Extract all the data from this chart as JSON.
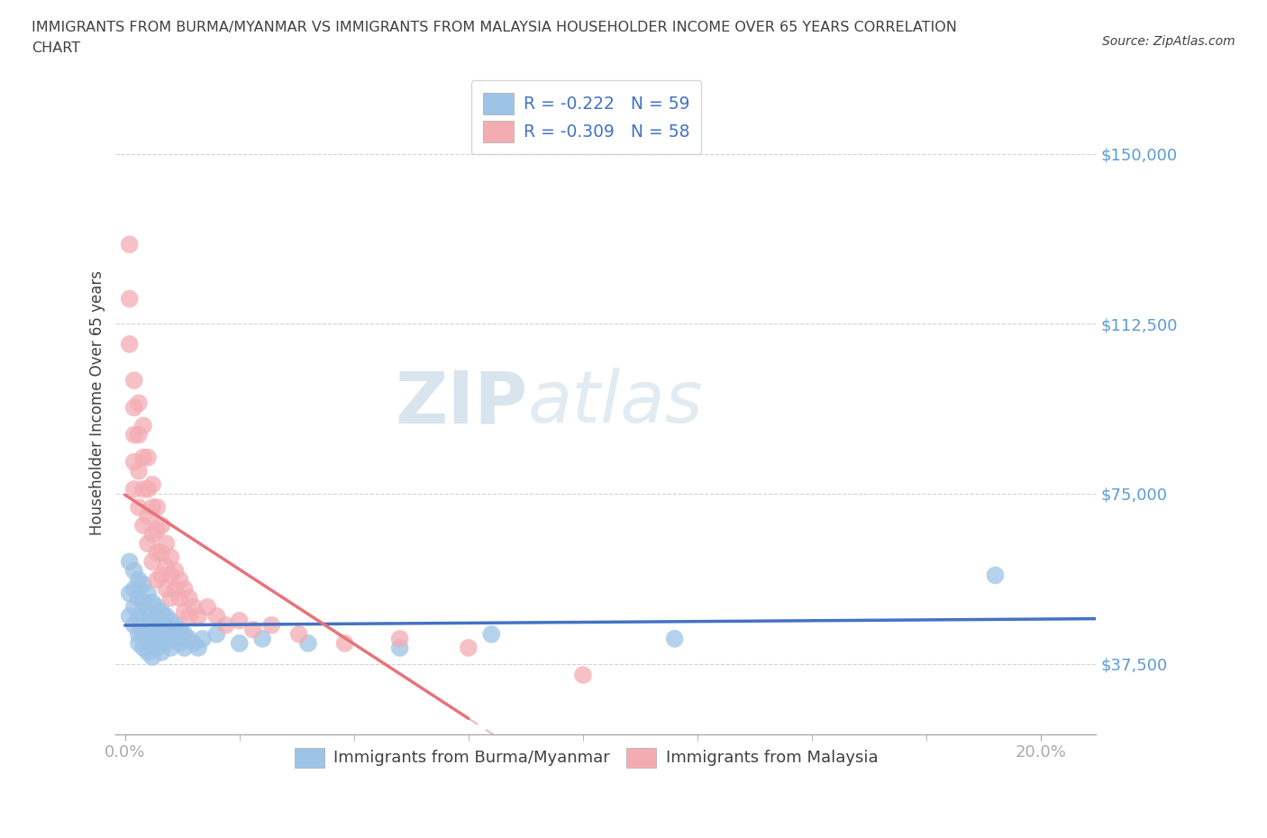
{
  "title_line1": "IMMIGRANTS FROM BURMA/MYANMAR VS IMMIGRANTS FROM MALAYSIA HOUSEHOLDER INCOME OVER 65 YEARS CORRELATION",
  "title_line2": "CHART",
  "source_text": "Source: ZipAtlas.com",
  "ylabel": "Householder Income Over 65 years",
  "watermark": "ZIPatlas",
  "xlim": [
    -0.002,
    0.212
  ],
  "ylim": [
    22000,
    168000
  ],
  "yticks": [
    37500,
    75000,
    112500,
    150000
  ],
  "ytick_labels": [
    "$37,500",
    "$75,000",
    "$112,500",
    "$150,000"
  ],
  "xtick_positions": [
    0.0,
    0.2
  ],
  "xtick_labels": [
    "0.0%",
    "20.0%"
  ],
  "xtick_minor_positions": [
    0.025,
    0.05,
    0.075,
    0.1,
    0.125,
    0.15,
    0.175
  ],
  "legend_entry1": "R = -0.222   N = 59",
  "legend_entry2": "R = -0.309   N = 58",
  "legend_labels": [
    "Immigrants from Burma/Myanmar",
    "Immigrants from Malaysia"
  ],
  "blue_color": "#4472c4",
  "pink_color": "#e8737a",
  "blue_scatter_color": "#9dc3e6",
  "pink_scatter_color": "#f4acb3",
  "axis_color": "#5b9bd5",
  "grid_color": "#c8c8c8",
  "burma_x": [
    0.001,
    0.001,
    0.001,
    0.002,
    0.002,
    0.002,
    0.002,
    0.003,
    0.003,
    0.003,
    0.003,
    0.003,
    0.004,
    0.004,
    0.004,
    0.004,
    0.004,
    0.005,
    0.005,
    0.005,
    0.005,
    0.005,
    0.006,
    0.006,
    0.006,
    0.006,
    0.006,
    0.007,
    0.007,
    0.007,
    0.007,
    0.008,
    0.008,
    0.008,
    0.008,
    0.009,
    0.009,
    0.009,
    0.01,
    0.01,
    0.01,
    0.011,
    0.011,
    0.012,
    0.012,
    0.013,
    0.013,
    0.014,
    0.015,
    0.016,
    0.017,
    0.02,
    0.025,
    0.03,
    0.04,
    0.06,
    0.08,
    0.12,
    0.19
  ],
  "burma_y": [
    60000,
    53000,
    48000,
    58000,
    54000,
    50000,
    46000,
    56000,
    52000,
    48000,
    44000,
    42000,
    55000,
    51000,
    47000,
    44000,
    41000,
    53000,
    49000,
    46000,
    43000,
    40000,
    51000,
    48000,
    45000,
    42000,
    39000,
    50000,
    47000,
    44000,
    41000,
    49000,
    46000,
    43000,
    40000,
    48000,
    45000,
    42000,
    47000,
    44000,
    41000,
    46000,
    43000,
    45000,
    42000,
    44000,
    41000,
    43000,
    42000,
    41000,
    43000,
    44000,
    42000,
    43000,
    42000,
    41000,
    44000,
    43000,
    57000
  ],
  "malaysia_x": [
    0.001,
    0.001,
    0.001,
    0.002,
    0.002,
    0.002,
    0.002,
    0.002,
    0.003,
    0.003,
    0.003,
    0.003,
    0.004,
    0.004,
    0.004,
    0.004,
    0.005,
    0.005,
    0.005,
    0.005,
    0.006,
    0.006,
    0.006,
    0.006,
    0.007,
    0.007,
    0.007,
    0.007,
    0.008,
    0.008,
    0.008,
    0.009,
    0.009,
    0.009,
    0.01,
    0.01,
    0.01,
    0.011,
    0.011,
    0.012,
    0.012,
    0.013,
    0.013,
    0.014,
    0.014,
    0.015,
    0.016,
    0.018,
    0.02,
    0.022,
    0.025,
    0.028,
    0.032,
    0.038,
    0.048,
    0.06,
    0.075,
    0.1
  ],
  "malaysia_y": [
    130000,
    118000,
    108000,
    100000,
    94000,
    88000,
    82000,
    76000,
    95000,
    88000,
    80000,
    72000,
    90000,
    83000,
    76000,
    68000,
    83000,
    76000,
    70000,
    64000,
    77000,
    72000,
    66000,
    60000,
    72000,
    67000,
    62000,
    56000,
    68000,
    62000,
    57000,
    64000,
    59000,
    54000,
    61000,
    57000,
    52000,
    58000,
    54000,
    56000,
    52000,
    54000,
    49000,
    52000,
    48000,
    50000,
    48000,
    50000,
    48000,
    46000,
    47000,
    45000,
    46000,
    44000,
    42000,
    43000,
    41000,
    35000
  ],
  "burma_line_x": [
    0.0,
    0.212
  ],
  "malaysia_line_x": [
    0.0,
    0.212
  ],
  "burma_line_intercept": 55000,
  "burma_line_slope": -80000,
  "malaysia_line_intercept": 76000,
  "malaysia_line_slope": -430000
}
